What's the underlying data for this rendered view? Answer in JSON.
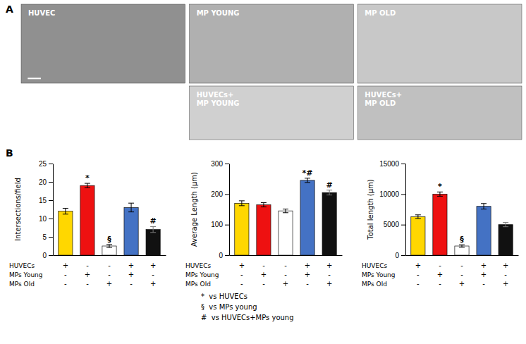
{
  "chart_data": [
    {
      "type": "image",
      "title": "HUVEC",
      "color": "#909090",
      "panel_label": "A"
    },
    {
      "type": "image",
      "title": "MP YOUNG",
      "color": "#B0B0B0"
    },
    {
      "type": "image",
      "title": "MP OLD",
      "color": "#C8C8C8"
    },
    {
      "type": "image",
      "title": "HUVECs+\nMP YOUNG",
      "color": "#D0D0D0"
    },
    {
      "type": "image",
      "title": "HUVECs+\nMP OLD",
      "color": "#C0C0C0"
    },
    {
      "type": "bar",
      "panel_label": "B",
      "ylabel": "Intersections/field",
      "categories": [
        null,
        null,
        null,
        null,
        null
      ],
      "values": [
        12,
        19,
        2.5,
        13,
        7
      ],
      "errors": [
        0.8,
        0.6,
        0.4,
        1.2,
        0.8
      ],
      "colors": [
        "#FFD700",
        "#EE1111",
        "#FFFFFF",
        "#4472C4",
        "#111111"
      ],
      "annotations": [
        null,
        "*",
        "§",
        null,
        "#"
      ],
      "ylim": [
        0,
        25
      ],
      "yticks": [
        0,
        5,
        10,
        15,
        20,
        25
      ],
      "conditions": [
        {
          "name": "HUVECs",
          "values": [
            "+",
            "-",
            "-",
            "+",
            "+"
          ]
        },
        {
          "name": "MPs Young",
          "values": [
            "-",
            "+",
            "-",
            "+",
            "-"
          ]
        },
        {
          "name": "MPs Old",
          "values": [
            "-",
            "-",
            "+",
            "-",
            "+"
          ]
        }
      ]
    },
    {
      "type": "bar",
      "ylabel": "Average Length (μm)",
      "categories": [
        null,
        null,
        null,
        null,
        null
      ],
      "values": [
        170,
        165,
        145,
        245,
        205
      ],
      "errors": [
        8,
        7,
        6,
        7,
        8
      ],
      "colors": [
        "#FFD700",
        "#EE1111",
        "#FFFFFF",
        "#4472C4",
        "#111111"
      ],
      "annotations": [
        null,
        null,
        null,
        "*#",
        "#"
      ],
      "ylim": [
        0,
        300
      ],
      "yticks": [
        0,
        100,
        200,
        300
      ],
      "conditions": [
        {
          "name": "HUVECs",
          "values": [
            "+",
            "-",
            "-",
            "+",
            "+"
          ]
        },
        {
          "name": "MPs Young",
          "values": [
            "-",
            "+",
            "-",
            "+",
            "-"
          ]
        },
        {
          "name": "MPs Old",
          "values": [
            "-",
            "-",
            "+",
            "-",
            "+"
          ]
        }
      ],
      "legend_items": [
        "*  vs HUVECs",
        "§  vs MPs young",
        "#  vs HUVECs+MPs young"
      ]
    },
    {
      "type": "bar",
      "ylabel": "Total length (μm)",
      "categories": [
        null,
        null,
        null,
        null,
        null
      ],
      "values": [
        6300,
        10000,
        1500,
        8000,
        5000
      ],
      "errors": [
        300,
        350,
        200,
        450,
        350
      ],
      "colors": [
        "#FFD700",
        "#EE1111",
        "#FFFFFF",
        "#4472C4",
        "#111111"
      ],
      "annotations": [
        null,
        "*",
        "§",
        null,
        null
      ],
      "ylim": [
        0,
        15000
      ],
      "yticks": [
        0,
        5000,
        10000,
        15000
      ],
      "conditions": [
        {
          "name": "HUVECs",
          "values": [
            "+",
            "-",
            "-",
            "+",
            "+"
          ]
        },
        {
          "name": "MPs Young",
          "values": [
            "-",
            "+",
            "-",
            "+",
            "-"
          ]
        },
        {
          "name": "MPs Old",
          "values": [
            "-",
            "-",
            "+",
            "-",
            "+"
          ]
        }
      ]
    }
  ]
}
